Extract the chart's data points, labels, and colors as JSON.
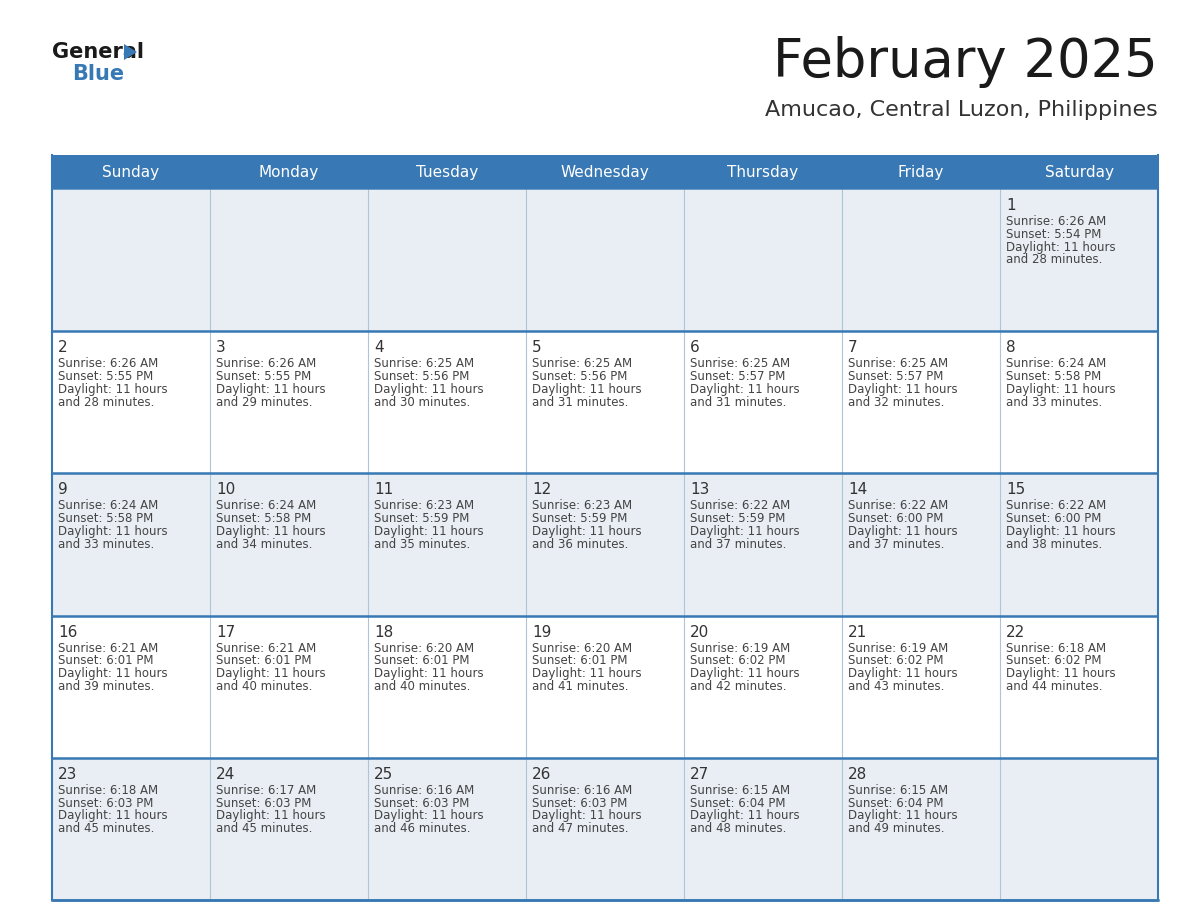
{
  "title": "February 2025",
  "subtitle": "Amucao, Central Luzon, Philippines",
  "days_of_week": [
    "Sunday",
    "Monday",
    "Tuesday",
    "Wednesday",
    "Thursday",
    "Friday",
    "Saturday"
  ],
  "header_bg": "#3878b4",
  "header_text": "#ffffff",
  "cell_bg_light": "#e8eef4",
  "cell_bg_white": "#ffffff",
  "separator_color": "#3878b4",
  "grid_line_color": "#b0c4d8",
  "text_color": "#444444",
  "day_num_color": "#333333",
  "calendar": [
    [
      null,
      null,
      null,
      null,
      null,
      null,
      {
        "day": 1,
        "sunrise": "6:26 AM",
        "sunset": "5:54 PM",
        "daylight": "11 hours and 28 minutes."
      }
    ],
    [
      {
        "day": 2,
        "sunrise": "6:26 AM",
        "sunset": "5:55 PM",
        "daylight": "11 hours and 28 minutes."
      },
      {
        "day": 3,
        "sunrise": "6:26 AM",
        "sunset": "5:55 PM",
        "daylight": "11 hours and 29 minutes."
      },
      {
        "day": 4,
        "sunrise": "6:25 AM",
        "sunset": "5:56 PM",
        "daylight": "11 hours and 30 minutes."
      },
      {
        "day": 5,
        "sunrise": "6:25 AM",
        "sunset": "5:56 PM",
        "daylight": "11 hours and 31 minutes."
      },
      {
        "day": 6,
        "sunrise": "6:25 AM",
        "sunset": "5:57 PM",
        "daylight": "11 hours and 31 minutes."
      },
      {
        "day": 7,
        "sunrise": "6:25 AM",
        "sunset": "5:57 PM",
        "daylight": "11 hours and 32 minutes."
      },
      {
        "day": 8,
        "sunrise": "6:24 AM",
        "sunset": "5:58 PM",
        "daylight": "11 hours and 33 minutes."
      }
    ],
    [
      {
        "day": 9,
        "sunrise": "6:24 AM",
        "sunset": "5:58 PM",
        "daylight": "11 hours and 33 minutes."
      },
      {
        "day": 10,
        "sunrise": "6:24 AM",
        "sunset": "5:58 PM",
        "daylight": "11 hours and 34 minutes."
      },
      {
        "day": 11,
        "sunrise": "6:23 AM",
        "sunset": "5:59 PM",
        "daylight": "11 hours and 35 minutes."
      },
      {
        "day": 12,
        "sunrise": "6:23 AM",
        "sunset": "5:59 PM",
        "daylight": "11 hours and 36 minutes."
      },
      {
        "day": 13,
        "sunrise": "6:22 AM",
        "sunset": "5:59 PM",
        "daylight": "11 hours and 37 minutes."
      },
      {
        "day": 14,
        "sunrise": "6:22 AM",
        "sunset": "6:00 PM",
        "daylight": "11 hours and 37 minutes."
      },
      {
        "day": 15,
        "sunrise": "6:22 AM",
        "sunset": "6:00 PM",
        "daylight": "11 hours and 38 minutes."
      }
    ],
    [
      {
        "day": 16,
        "sunrise": "6:21 AM",
        "sunset": "6:01 PM",
        "daylight": "11 hours and 39 minutes."
      },
      {
        "day": 17,
        "sunrise": "6:21 AM",
        "sunset": "6:01 PM",
        "daylight": "11 hours and 40 minutes."
      },
      {
        "day": 18,
        "sunrise": "6:20 AM",
        "sunset": "6:01 PM",
        "daylight": "11 hours and 40 minutes."
      },
      {
        "day": 19,
        "sunrise": "6:20 AM",
        "sunset": "6:01 PM",
        "daylight": "11 hours and 41 minutes."
      },
      {
        "day": 20,
        "sunrise": "6:19 AM",
        "sunset": "6:02 PM",
        "daylight": "11 hours and 42 minutes."
      },
      {
        "day": 21,
        "sunrise": "6:19 AM",
        "sunset": "6:02 PM",
        "daylight": "11 hours and 43 minutes."
      },
      {
        "day": 22,
        "sunrise": "6:18 AM",
        "sunset": "6:02 PM",
        "daylight": "11 hours and 44 minutes."
      }
    ],
    [
      {
        "day": 23,
        "sunrise": "6:18 AM",
        "sunset": "6:03 PM",
        "daylight": "11 hours and 45 minutes."
      },
      {
        "day": 24,
        "sunrise": "6:17 AM",
        "sunset": "6:03 PM",
        "daylight": "11 hours and 45 minutes."
      },
      {
        "day": 25,
        "sunrise": "6:16 AM",
        "sunset": "6:03 PM",
        "daylight": "11 hours and 46 minutes."
      },
      {
        "day": 26,
        "sunrise": "6:16 AM",
        "sunset": "6:03 PM",
        "daylight": "11 hours and 47 minutes."
      },
      {
        "day": 27,
        "sunrise": "6:15 AM",
        "sunset": "6:04 PM",
        "daylight": "11 hours and 48 minutes."
      },
      {
        "day": 28,
        "sunrise": "6:15 AM",
        "sunset": "6:04 PM",
        "daylight": "11 hours and 49 minutes."
      },
      null
    ]
  ],
  "logo_triangle_color": "#3878b4",
  "title_fontsize": 38,
  "subtitle_fontsize": 16,
  "header_fontsize": 11,
  "day_num_fontsize": 11,
  "cell_text_fontsize": 8.5
}
